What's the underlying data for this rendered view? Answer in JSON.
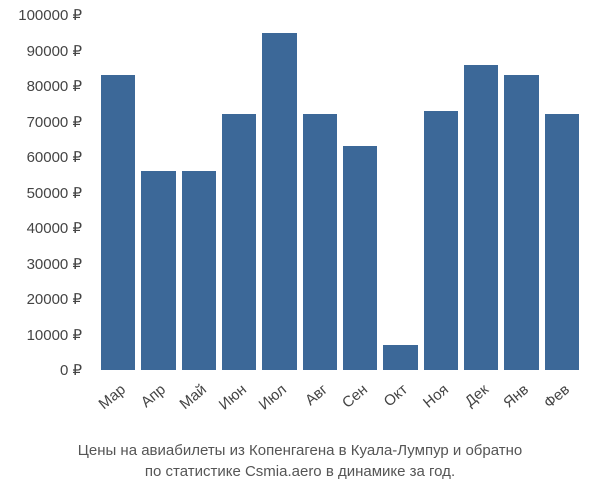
{
  "chart": {
    "type": "bar",
    "ylim": [
      0,
      100000
    ],
    "ytick_step": 10000,
    "y_suffix": " ₽",
    "bar_color": "#3c6898",
    "background_color": "#ffffff",
    "tick_font_color": "#444444",
    "tick_fontsize": 15,
    "caption_color": "#555555",
    "caption_fontsize": 15,
    "categories": [
      "Мар",
      "Апр",
      "Май",
      "Июн",
      "Июл",
      "Авг",
      "Сен",
      "Окт",
      "Ноя",
      "Дек",
      "Янв",
      "Фев"
    ],
    "values": [
      83000,
      56000,
      56000,
      72000,
      95000,
      72000,
      63000,
      7000,
      73000,
      86000,
      83000,
      72000
    ],
    "yticks": [
      {
        "value": 0,
        "label": "0 ₽"
      },
      {
        "value": 10000,
        "label": "10000 ₽"
      },
      {
        "value": 20000,
        "label": "20000 ₽"
      },
      {
        "value": 30000,
        "label": "30000 ₽"
      },
      {
        "value": 40000,
        "label": "40000 ₽"
      },
      {
        "value": 50000,
        "label": "50000 ₽"
      },
      {
        "value": 60000,
        "label": "60000 ₽"
      },
      {
        "value": 70000,
        "label": "70000 ₽"
      },
      {
        "value": 80000,
        "label": "80000 ₽"
      },
      {
        "value": 90000,
        "label": "90000 ₽"
      },
      {
        "value": 100000,
        "label": "100000 ₽"
      }
    ]
  },
  "caption": {
    "line1": "Цены на авиабилеты из Копенгагена в Куала-Лумпур и обратно",
    "line2": "по статистике Csmia.aero в динамике за год."
  }
}
